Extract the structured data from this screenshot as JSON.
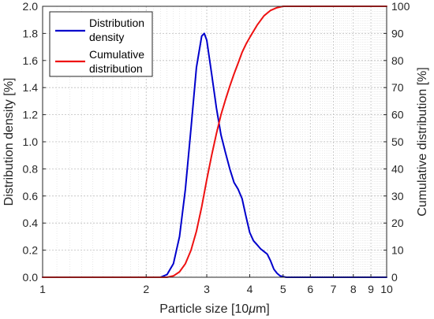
{
  "chart_data": {
    "type": "line",
    "x_scale": "log",
    "xlim": [
      1,
      10
    ],
    "ylim_left": [
      0,
      2.0
    ],
    "ylim_right": [
      0,
      100
    ],
    "xlabel_text": "Particle size [10",
    "xlabel_mu": "μ",
    "xlabel_unit": "m]",
    "ylabel_left": "Distribution density [%]",
    "ylabel_right": "Cumulative distribution [%]",
    "grid": "on",
    "legend_position": "top-left",
    "x_ticks": [
      "1",
      "2",
      "3",
      "4",
      "5",
      "6",
      "7",
      "8",
      "9",
      "10"
    ],
    "y_left_ticks": [
      "0.0",
      "0.2",
      "0.4",
      "0.6",
      "0.8",
      "1.0",
      "1.2",
      "1.4",
      "1.6",
      "1.8",
      "2.0"
    ],
    "y_right_ticks": [
      "0",
      "10",
      "20",
      "30",
      "40",
      "50",
      "60",
      "70",
      "80",
      "90",
      "100"
    ],
    "series": [
      {
        "name_line1": "Distribution",
        "name_line2": "density",
        "axis": "left",
        "color": "#0000cc",
        "x": [
          1.0,
          2.2,
          2.3,
          2.4,
          2.5,
          2.6,
          2.7,
          2.8,
          2.9,
          2.95,
          3.0,
          3.1,
          3.2,
          3.3,
          3.4,
          3.5,
          3.6,
          3.7,
          3.8,
          3.9,
          4.0,
          4.1,
          4.2,
          4.3,
          4.4,
          4.5,
          4.6,
          4.7,
          4.8,
          4.9,
          5.0,
          5.1,
          5.3,
          10.0
        ],
        "y": [
          0.0,
          0.0,
          0.02,
          0.1,
          0.3,
          0.65,
          1.1,
          1.55,
          1.78,
          1.8,
          1.75,
          1.5,
          1.25,
          1.05,
          0.92,
          0.8,
          0.7,
          0.65,
          0.58,
          0.45,
          0.33,
          0.27,
          0.24,
          0.21,
          0.19,
          0.17,
          0.12,
          0.06,
          0.03,
          0.01,
          0.005,
          0.0,
          0.0,
          0.0
        ]
      },
      {
        "name_line1": "Cumulative",
        "name_line2": "distribution",
        "axis": "right",
        "color": "#ee1111",
        "x": [
          1.0,
          2.3,
          2.4,
          2.5,
          2.6,
          2.7,
          2.8,
          2.9,
          3.0,
          3.1,
          3.2,
          3.3,
          3.4,
          3.5,
          3.6,
          3.7,
          3.8,
          3.9,
          4.0,
          4.2,
          4.4,
          4.6,
          4.8,
          5.0,
          5.3,
          5.6,
          6.0,
          10.0
        ],
        "y": [
          0.0,
          0.0,
          0.5,
          2.0,
          5.0,
          10.0,
          17.0,
          26.0,
          36.0,
          45.0,
          53.0,
          60.0,
          65.5,
          70.5,
          75.0,
          79.0,
          83.0,
          86.0,
          88.5,
          93.0,
          96.5,
          98.5,
          99.5,
          100.0,
          100.0,
          100.0,
          100.0,
          100.0
        ]
      }
    ]
  }
}
